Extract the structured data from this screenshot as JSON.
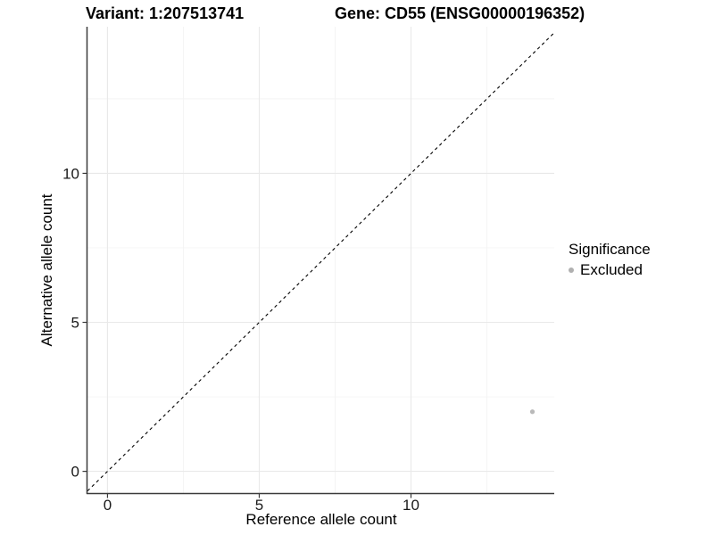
{
  "titles": {
    "variant": "Variant: 1:207513741",
    "gene": "Gene: CD55 (ENSG00000196352)"
  },
  "chart_data": {
    "type": "scatter",
    "title_left": "Variant: 1:207513741",
    "title_right": "Gene: CD55 (ENSG00000196352)",
    "xlabel": "Reference allele count",
    "ylabel": "Alternative allele count",
    "xlim": [
      -0.66,
      14.72
    ],
    "ylim": [
      -0.73,
      14.92
    ],
    "x_ticks": [
      0,
      5,
      10
    ],
    "y_ticks": [
      0,
      5,
      10
    ],
    "x_minor_gridlines": [
      2.5,
      7.5,
      12.5
    ],
    "y_minor_gridlines": [
      2.5,
      7.5,
      12.5
    ],
    "grid": "on",
    "legend_position": "right",
    "identity_line": {
      "equation": "y = x",
      "style": "dashed",
      "color": "#000000"
    },
    "series": [
      {
        "name": "Excluded",
        "color": "#b9b9b9",
        "points": [
          {
            "x": 14,
            "y": 2
          }
        ]
      }
    ],
    "legend": {
      "title": "Significance",
      "items": [
        {
          "label": "Excluded",
          "color": "#b0b0b0"
        }
      ]
    }
  },
  "styles": {
    "background": "#ffffff",
    "grid_major_color": "#e9e9e9",
    "grid_minor_color": "#f4f4f4",
    "axis_line_color": "#3a3a3a",
    "tick_color": "#3a3a3a",
    "tick_text_color": "#1a1a1a"
  }
}
